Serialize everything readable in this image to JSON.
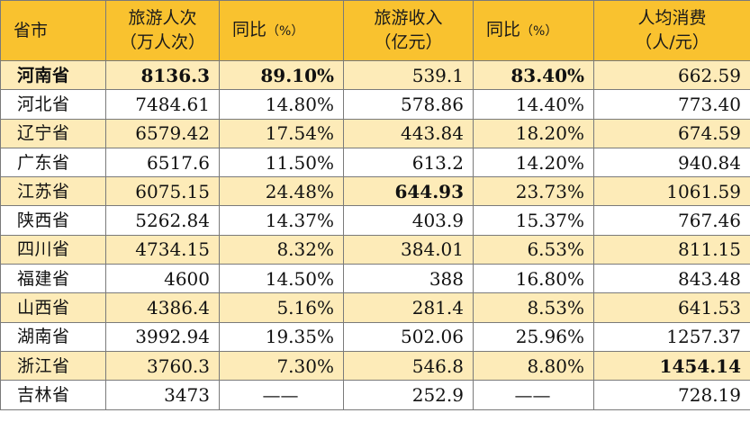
{
  "headers": {
    "province": "省市",
    "visitors_line1": "旅游人次",
    "visitors_line2": "（万人次）",
    "visitors_yoy": "同比",
    "visitors_yoy_unit": "（%）",
    "revenue_line1": "旅游收入",
    "revenue_line2": "（亿元）",
    "revenue_yoy": "同比",
    "revenue_yoy_unit": "（%）",
    "per_capita_line1": "人均消费",
    "per_capita_line2": "（人/元）"
  },
  "rows": [
    {
      "province": "河南省",
      "visitors": "8136.3",
      "visitors_yoy": "89.10%",
      "revenue": "539.1",
      "revenue_yoy": "83.40%",
      "per_capita": "662.59"
    },
    {
      "province": "河北省",
      "visitors": "7484.61",
      "visitors_yoy": "14.80%",
      "revenue": "578.86",
      "revenue_yoy": "14.40%",
      "per_capita": "773.40"
    },
    {
      "province": "辽宁省",
      "visitors": "6579.42",
      "visitors_yoy": "17.54%",
      "revenue": "443.84",
      "revenue_yoy": "18.20%",
      "per_capita": "674.59"
    },
    {
      "province": "广东省",
      "visitors": "6517.6",
      "visitors_yoy": "11.50%",
      "revenue": "613.2",
      "revenue_yoy": "14.20%",
      "per_capita": "940.84"
    },
    {
      "province": "江苏省",
      "visitors": "6075.15",
      "visitors_yoy": "24.48%",
      "revenue": "644.93",
      "revenue_yoy": "23.73%",
      "per_capita": "1061.59"
    },
    {
      "province": "陕西省",
      "visitors": "5262.84",
      "visitors_yoy": "14.37%",
      "revenue": "403.9",
      "revenue_yoy": "15.37%",
      "per_capita": "767.46"
    },
    {
      "province": "四川省",
      "visitors": "4734.15",
      "visitors_yoy": "8.32%",
      "revenue": "384.01",
      "revenue_yoy": "6.53%",
      "per_capita": "811.15"
    },
    {
      "province": "福建省",
      "visitors": "4600",
      "visitors_yoy": "14.50%",
      "revenue": "388",
      "revenue_yoy": "16.80%",
      "per_capita": "843.48"
    },
    {
      "province": "山西省",
      "visitors": "4386.4",
      "visitors_yoy": "5.16%",
      "revenue": "281.4",
      "revenue_yoy": "8.53%",
      "per_capita": "641.53"
    },
    {
      "province": "湖南省",
      "visitors": "3992.94",
      "visitors_yoy": "19.35%",
      "revenue": "502.06",
      "revenue_yoy": "25.96%",
      "per_capita": "1257.37"
    },
    {
      "province": "浙江省",
      "visitors": "3760.3",
      "visitors_yoy": "7.30%",
      "revenue": "546.8",
      "revenue_yoy": "8.80%",
      "per_capita": "1454.14"
    },
    {
      "province": "吉林省",
      "visitors": "3473",
      "visitors_yoy": "——",
      "revenue": "252.9",
      "revenue_yoy": "——",
      "per_capita": "728.19"
    }
  ],
  "colors": {
    "header_bg": "#f9c22f",
    "band_bg": "#fdebb8",
    "border": "#7a7a7a"
  }
}
